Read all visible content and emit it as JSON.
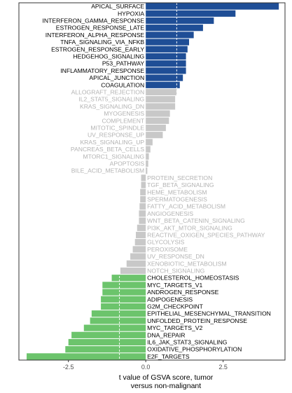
{
  "chart_data": {
    "type": "bar",
    "orientation": "horizontal",
    "xlabel": "t value of GSVA score, tumor\nversus non-malignant",
    "ylabel": "",
    "xlim": [
      -4.1,
      4.5
    ],
    "xticks": [
      -2.5,
      0.0,
      2.5
    ],
    "xtick_labels": [
      "-2.5",
      "0.0",
      "2.5"
    ],
    "reference_lines": [
      -0.85,
      1.0
    ],
    "grid": false,
    "legend": "none",
    "colors": {
      "up": "#1f4e96",
      "neutral": "#c8c8c8",
      "down": "#6cc46c",
      "label_significant": "#000000",
      "label_neutral": "#b3b3b3",
      "reference_line": "#ffffff"
    },
    "categories": [
      "APICAL_SURFACE",
      "HYPOXIA",
      "INTERFERON_GAMMA_RESPONSE",
      "ESTROGEN_RESPONSE_LATE",
      "INTERFERON_ALPHA_RESPONSE",
      "TNFA_SIGNALING_VIA_NFKB",
      "ESTROGEN_RESPONSE_EARLY",
      "HEDGEHOG_SIGNALING",
      "P53_PATHWAY",
      "INFLAMMATORY_RESPONSE",
      "APICAL_JUNCTION",
      "COAGULATION",
      "ALLOGRAFT_REJECTION",
      "IL2_STAT5_SIGNALING",
      "KRAS_SIGNALING_DN",
      "MYOGENESIS",
      "COMPLEMENT",
      "MITOTIC_SPINDLE",
      "UV_RESPONSE_UP",
      "KRAS_SIGNALING_UP",
      "PANCREAS_BETA_CELLS",
      "MTORC1_SIGNALING",
      "APOPTOSIS",
      "BILE_ACID_METABOLISM",
      "PROTEIN_SECRETION",
      "TGF_BETA_SIGNALING",
      "HEME_METABOLISM",
      "SPERMATOGENESIS",
      "FATTY_ACID_METABOLISM",
      "ANGIOGENESIS",
      "WNT_BETA_CATENIN_SIGNALING",
      "PI3K_AKT_MTOR_SIGNALING",
      "REACTIVE_OXIGEN_SPECIES_PATHWAY",
      "GLYCOLYSIS",
      "PEROXISOME",
      "UV_RESPONSE_DN",
      "XENOBIOTIC_METABOLISM",
      "NOTCH_SIGNALING",
      "CHOLESTEROL_HOMEOSTASIS",
      "MYC_TARGETS_V1",
      "ANDROGEN_RESPONSE",
      "ADIPOGENESIS",
      "G2M_CHECKPOINT",
      "EPITHELIAL_MESENCHYMAL_TRANSITION",
      "UNFOLDED_PROTEIN_RESPONSE",
      "MYC_TARGETS_V2",
      "DNA_REPAIR",
      "IL6_JAK_STAT3_SIGNALING",
      "OXIDATIVE_PHOSPHORYLATION",
      "E2F_TARGETS"
    ],
    "values": [
      4.3,
      2.9,
      2.2,
      1.85,
      1.55,
      1.4,
      1.35,
      1.3,
      1.3,
      1.3,
      1.2,
      1.1,
      1.0,
      0.95,
      0.95,
      0.78,
      0.75,
      0.65,
      0.55,
      0.22,
      0.15,
      0.1,
      0.08,
      0.05,
      -0.15,
      -0.15,
      -0.18,
      -0.18,
      -0.2,
      -0.22,
      -0.22,
      -0.28,
      -0.32,
      -0.35,
      -0.42,
      -0.5,
      -0.62,
      -0.82,
      -1.1,
      -1.4,
      -1.4,
      -1.45,
      -1.45,
      -1.75,
      -1.8,
      -2.0,
      -2.4,
      -2.5,
      -2.6,
      -3.85
    ],
    "groups": [
      "up",
      "up",
      "up",
      "up",
      "up",
      "up",
      "up",
      "up",
      "up",
      "up",
      "up",
      "up",
      "neutral",
      "neutral",
      "neutral",
      "neutral",
      "neutral",
      "neutral",
      "neutral",
      "neutral",
      "neutral",
      "neutral",
      "neutral",
      "neutral",
      "neutral",
      "neutral",
      "neutral",
      "neutral",
      "neutral",
      "neutral",
      "neutral",
      "neutral",
      "neutral",
      "neutral",
      "neutral",
      "neutral",
      "neutral",
      "neutral",
      "down",
      "down",
      "down",
      "down",
      "down",
      "down",
      "down",
      "down",
      "down",
      "down",
      "down",
      "down"
    ]
  }
}
